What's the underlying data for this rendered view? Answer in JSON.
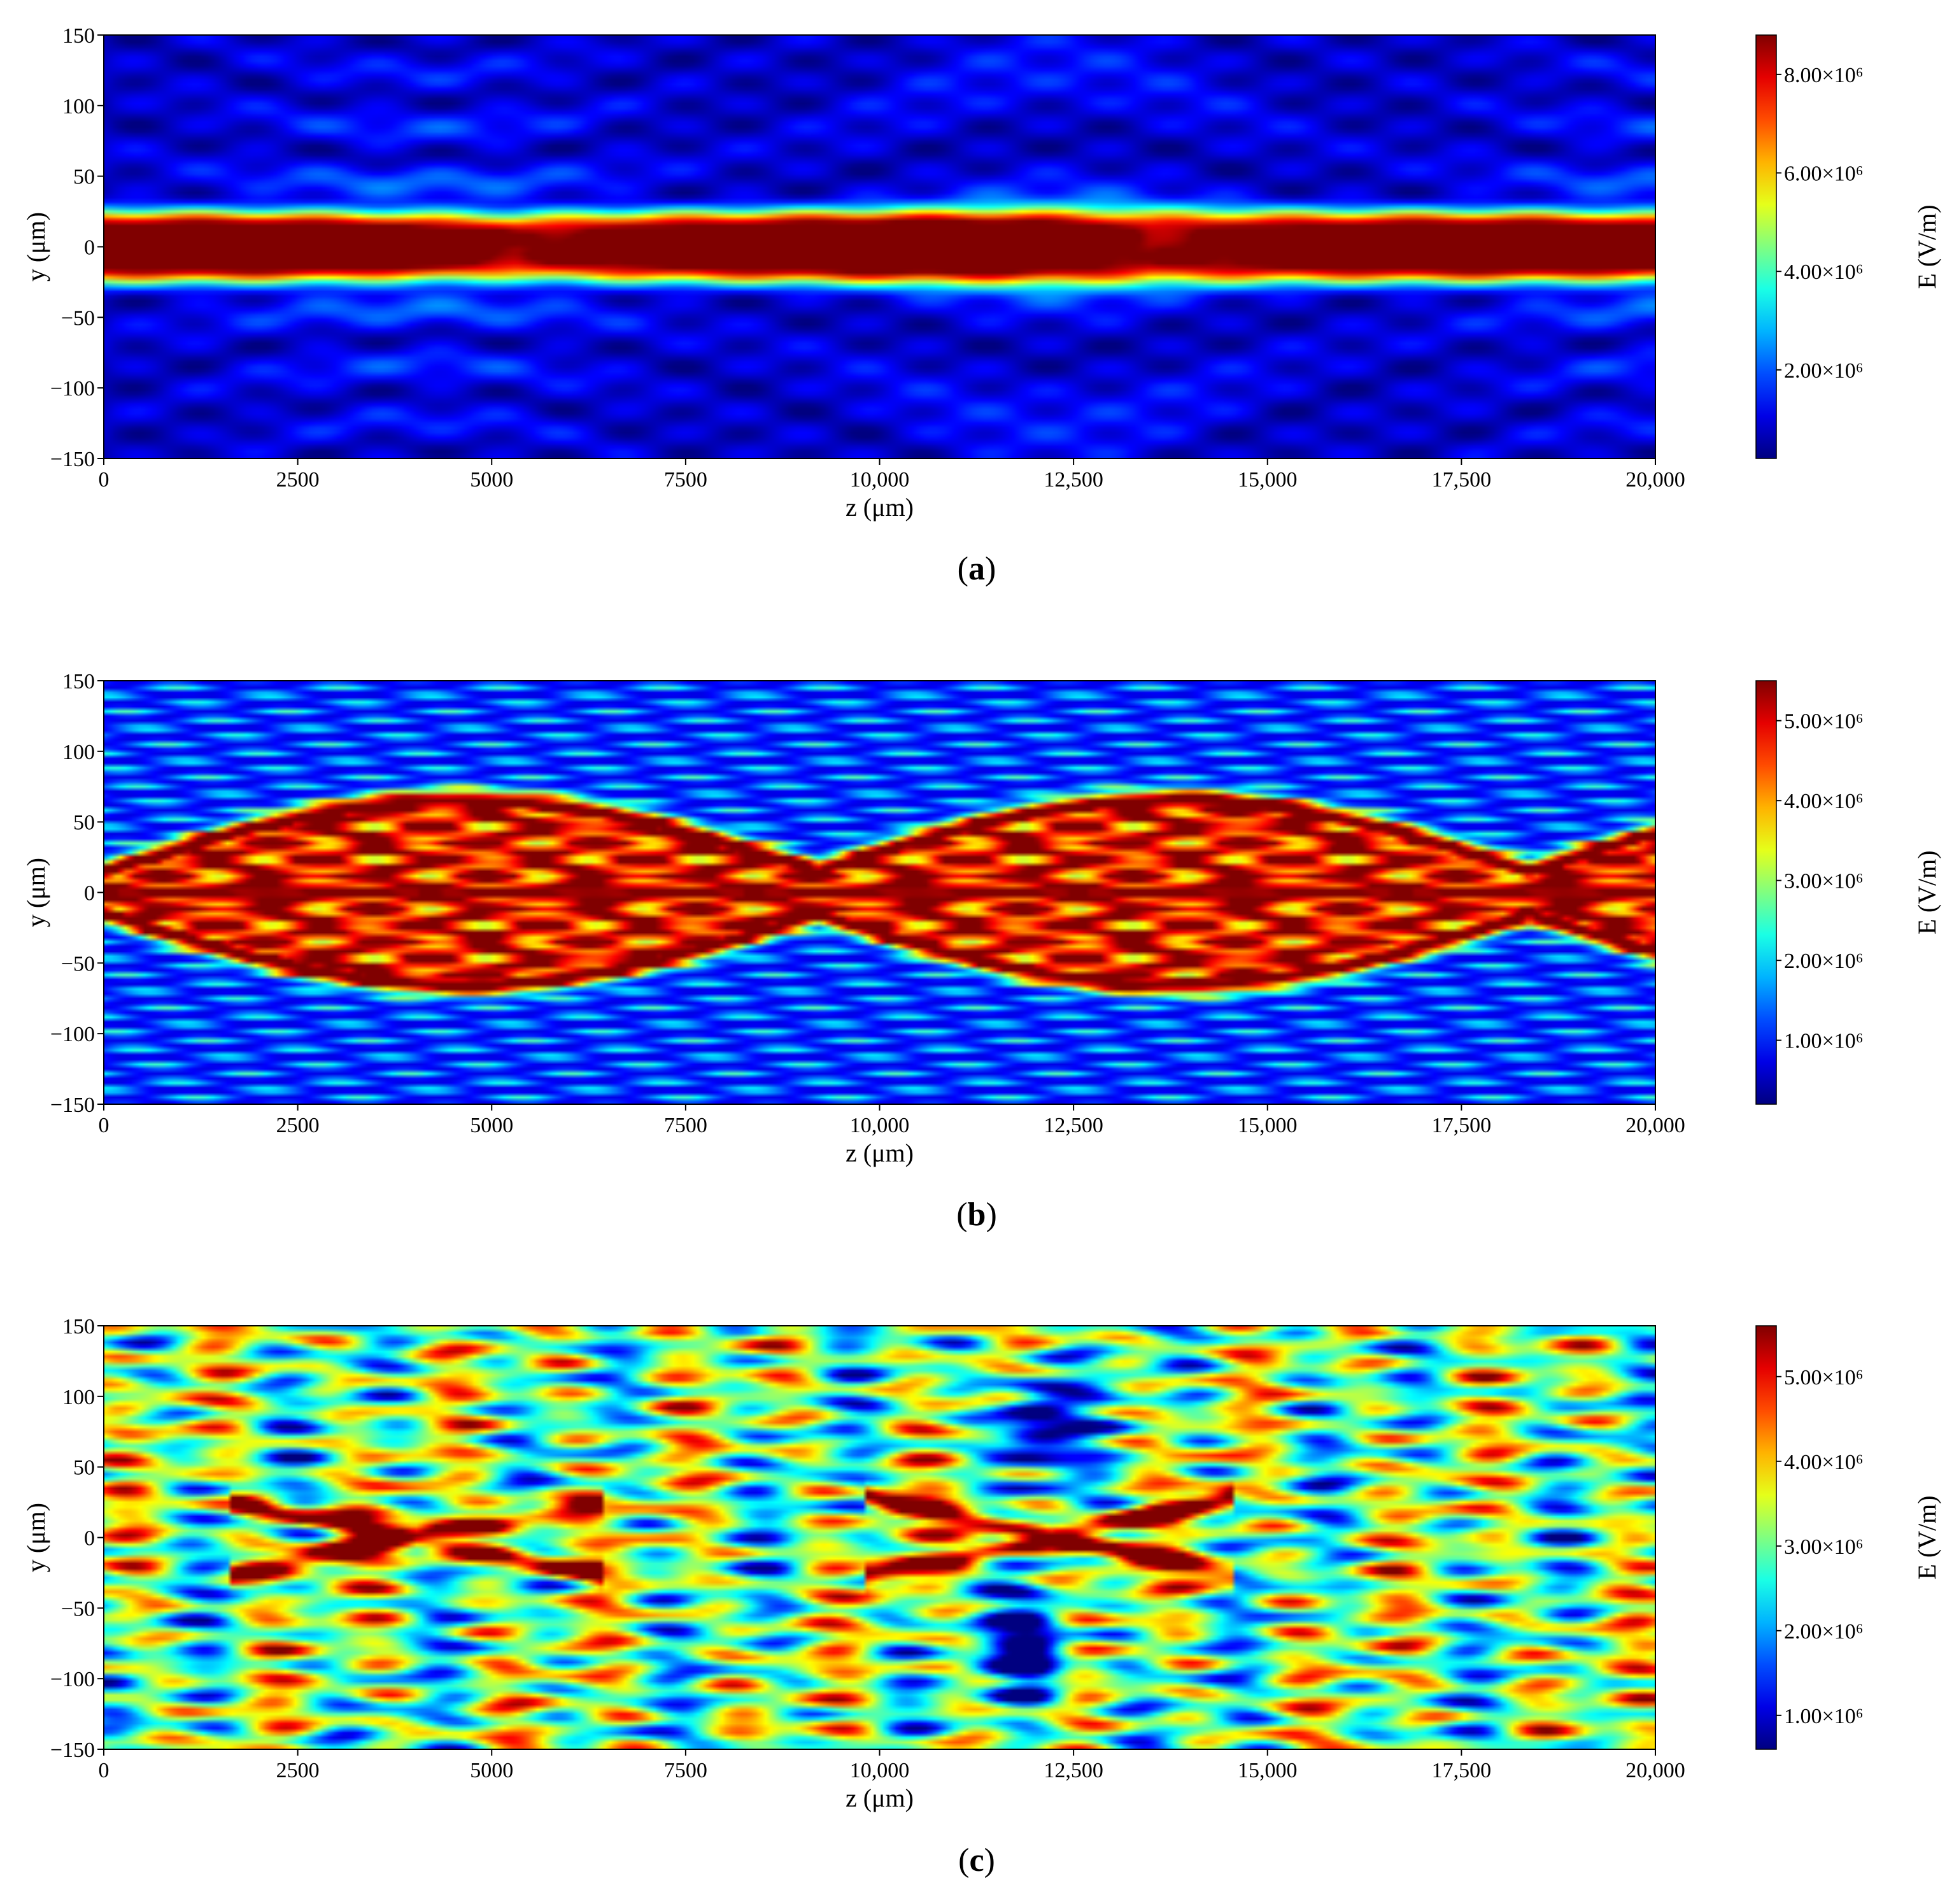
{
  "chart_data": [
    {
      "type": "heatmap",
      "label": "a",
      "xlabel": "z (μm)",
      "ylabel": "y (μm)",
      "colorbar_label": "E (V/m)",
      "xlim": [
        0,
        20000
      ],
      "ylim": [
        -150,
        150
      ],
      "x_ticks": [
        0,
        2500,
        5000,
        7500,
        10000,
        12500,
        15000,
        17500,
        20000
      ],
      "x_tick_labels": [
        "0",
        "2500",
        "5000",
        "7500",
        "10,000",
        "12,500",
        "15,000",
        "17,500",
        "20,000"
      ],
      "y_ticks": [
        150,
        100,
        50,
        0,
        -50,
        -100,
        -150
      ],
      "y_tick_labels": [
        "150",
        "100",
        "50",
        "0",
        "−50",
        "−100",
        "−150"
      ],
      "color_range": [
        200000,
        8800000
      ],
      "colorbar_ticks": [
        8000000,
        6000000,
        4000000,
        2000000
      ],
      "colorbar_tick_labels": [
        "8.00×10⁶",
        "6.00×10⁶",
        "4.00×10⁶",
        "2.00×10⁶"
      ],
      "colormap": "jet"
    },
    {
      "type": "heatmap",
      "label": "b",
      "xlabel": "z (μm)",
      "ylabel": "y (μm)",
      "colorbar_label": "E (V/m)",
      "xlim": [
        0,
        20000
      ],
      "ylim": [
        -150,
        150
      ],
      "x_ticks": [
        0,
        2500,
        5000,
        7500,
        10000,
        12500,
        15000,
        17500,
        20000
      ],
      "x_tick_labels": [
        "0",
        "2500",
        "5000",
        "7500",
        "10,000",
        "12,500",
        "15,000",
        "17,500",
        "20,000"
      ],
      "y_ticks": [
        150,
        100,
        50,
        0,
        -50,
        -100,
        -150
      ],
      "y_tick_labels": [
        "150",
        "100",
        "50",
        "0",
        "−50",
        "−100",
        "−150"
      ],
      "color_range": [
        200000,
        5500000
      ],
      "colorbar_ticks": [
        5000000,
        4000000,
        3000000,
        2000000,
        1000000
      ],
      "colorbar_tick_labels": [
        "5.00×10⁶",
        "4.00×10⁶",
        "3.00×10⁶",
        "2.00×10⁶",
        "1.00×10⁶"
      ],
      "colormap": "jet"
    },
    {
      "type": "heatmap",
      "label": "c",
      "xlabel": "z (μm)",
      "ylabel": "y (μm)",
      "colorbar_label": "E (V/m)",
      "xlim": [
        0,
        20000
      ],
      "ylim": [
        -150,
        150
      ],
      "x_ticks": [
        0,
        2500,
        5000,
        7500,
        10000,
        12500,
        15000,
        17500,
        20000
      ],
      "x_tick_labels": [
        "0",
        "2500",
        "5000",
        "7500",
        "10,000",
        "12,500",
        "15,000",
        "17,500",
        "20,000"
      ],
      "y_ticks": [
        150,
        100,
        50,
        0,
        -50,
        -100,
        -150
      ],
      "y_tick_labels": [
        "150",
        "100",
        "50",
        "0",
        "−50",
        "−100",
        "−150"
      ],
      "color_range": [
        600000,
        5600000
      ],
      "colorbar_ticks": [
        5000000,
        4000000,
        3000000,
        2000000,
        1000000
      ],
      "colorbar_tick_labels": [
        "5.00×10⁶",
        "4.00×10⁶",
        "3.00×10⁶",
        "2.00×10⁶",
        "1.00×10⁶"
      ],
      "colormap": "jet"
    }
  ]
}
